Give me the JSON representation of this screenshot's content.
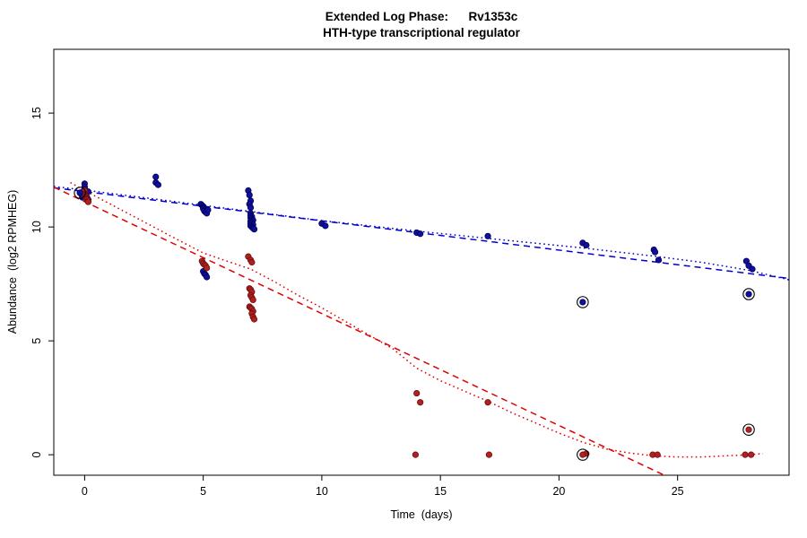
{
  "chart_data": {
    "type": "scatter",
    "title": "Extended Log Phase:      Rv1353c",
    "subtitle": "HTH-type transcriptional regulator",
    "xlabel": "Time  (days)",
    "ylabel": "Abundance  (log2 RPMHEG)",
    "xlim": [
      -1.3,
      29.7
    ],
    "ylim": [
      -0.9,
      17.8
    ],
    "xticks": [
      0,
      5,
      10,
      15,
      20,
      25
    ],
    "yticks": [
      0,
      5,
      10,
      15
    ],
    "grid": false,
    "legend": null,
    "colors": {
      "series1_points": "#10109b",
      "series2_points": "#b22020",
      "series1_line": "#0000d0",
      "series2_line": "#e00000",
      "outlier_ring": "#000000"
    },
    "series": [
      {
        "name": "fit-line-blue-dashed",
        "type": "line",
        "dash": "dashed",
        "color": "#0000d0",
        "points": [
          [
            -1.3,
            11.72
          ],
          [
            29.7,
            7.74
          ]
        ]
      },
      {
        "name": "fit-curve-blue-dotted",
        "type": "line",
        "dash": "dotted",
        "color": "#0000d0",
        "points": [
          [
            -1.3,
            11.78
          ],
          [
            0,
            11.62
          ],
          [
            3,
            11.22
          ],
          [
            5,
            10.95
          ],
          [
            7,
            10.68
          ],
          [
            10,
            10.28
          ],
          [
            14,
            9.82
          ],
          [
            17,
            9.5
          ],
          [
            21,
            9.08
          ],
          [
            24,
            8.72
          ],
          [
            26,
            8.45
          ],
          [
            28,
            8.1
          ],
          [
            29.7,
            7.68
          ]
        ]
      },
      {
        "name": "fit-line-red-dashed",
        "type": "line",
        "dash": "dashed",
        "color": "#e00000",
        "points": [
          [
            -1.3,
            11.75
          ],
          [
            24.4,
            -0.88
          ]
        ]
      },
      {
        "name": "fit-curve-red-dotted",
        "type": "line",
        "dash": "dotted",
        "color": "#e00000",
        "points": [
          [
            -0.6,
            11.95
          ],
          [
            0,
            11.6
          ],
          [
            1,
            11.05
          ],
          [
            2,
            10.5
          ],
          [
            3,
            9.95
          ],
          [
            4,
            9.4
          ],
          [
            5,
            8.86
          ],
          [
            6,
            8.5
          ],
          [
            7,
            8.15
          ],
          [
            8,
            7.6
          ],
          [
            9,
            7.0
          ],
          [
            10,
            6.45
          ],
          [
            11,
            5.85
          ],
          [
            12,
            5.25
          ],
          [
            13,
            4.65
          ],
          [
            14,
            3.8
          ],
          [
            15,
            3.25
          ],
          [
            16,
            2.8
          ],
          [
            17,
            2.35
          ],
          [
            18,
            1.85
          ],
          [
            19,
            1.4
          ],
          [
            20,
            0.95
          ],
          [
            21,
            0.55
          ],
          [
            22,
            0.25
          ],
          [
            23,
            0.07
          ],
          [
            24,
            -0.05
          ],
          [
            25,
            -0.1
          ],
          [
            26,
            -0.1
          ],
          [
            27,
            -0.05
          ],
          [
            28,
            0.0
          ],
          [
            28.6,
            0.05
          ]
        ]
      },
      {
        "name": "blue-sample-points",
        "type": "points",
        "color": "#10109b",
        "edge": "#00005a",
        "points": [
          [
            -0.15,
            11.45
          ],
          [
            -0.1,
            11.3
          ],
          [
            0,
            11.9
          ],
          [
            0,
            11.75
          ],
          [
            0,
            11.65
          ],
          [
            0,
            11.6
          ],
          [
            0,
            11.55
          ],
          [
            0,
            11.5
          ],
          [
            0.05,
            11.45
          ],
          [
            0.05,
            11.4
          ],
          [
            0.1,
            11.3
          ],
          [
            0.1,
            11.25
          ],
          [
            0.15,
            11.2
          ],
          [
            0.15,
            11.55
          ],
          [
            3,
            12.2
          ],
          [
            3,
            11.95
          ],
          [
            3.1,
            11.85
          ],
          [
            4.9,
            11.0
          ],
          [
            4.95,
            10.95
          ],
          [
            5,
            10.9
          ],
          [
            5,
            10.85
          ],
          [
            5,
            10.8
          ],
          [
            5.05,
            10.75
          ],
          [
            5.05,
            10.7
          ],
          [
            5.1,
            10.65
          ],
          [
            5.15,
            10.6
          ],
          [
            5.2,
            10.75
          ],
          [
            5,
            8.05
          ],
          [
            5.05,
            7.95
          ],
          [
            5.1,
            7.9
          ],
          [
            5.15,
            7.8
          ],
          [
            6.9,
            11.6
          ],
          [
            6.95,
            11.4
          ],
          [
            7,
            11.15
          ],
          [
            6.95,
            11.0
          ],
          [
            7,
            10.85
          ],
          [
            7,
            10.6
          ],
          [
            7,
            10.5
          ],
          [
            7.05,
            10.45
          ],
          [
            7,
            10.4
          ],
          [
            7.05,
            10.35
          ],
          [
            7.1,
            10.3
          ],
          [
            7,
            10.25
          ],
          [
            7.05,
            10.2
          ],
          [
            7,
            10.15
          ],
          [
            7.1,
            10.1
          ],
          [
            7,
            10.05
          ],
          [
            7.05,
            10.0
          ],
          [
            7.1,
            9.95
          ],
          [
            7.15,
            9.9
          ],
          [
            10,
            10.15
          ],
          [
            10.15,
            10.05
          ],
          [
            14,
            9.75
          ],
          [
            14.15,
            9.7
          ],
          [
            17,
            9.6
          ],
          [
            21,
            9.3
          ],
          [
            21.15,
            9.2
          ],
          [
            24,
            9.0
          ],
          [
            24.05,
            8.9
          ],
          [
            24.2,
            8.55
          ],
          [
            27.9,
            8.5
          ],
          [
            28,
            8.3
          ],
          [
            28.15,
            8.15
          ]
        ]
      },
      {
        "name": "red-sample-points",
        "type": "points",
        "color": "#b22020",
        "edge": "#6b0f0f",
        "points": [
          [
            -0.1,
            11.5
          ],
          [
            0,
            11.6
          ],
          [
            0,
            11.45
          ],
          [
            0,
            11.4
          ],
          [
            0.05,
            11.35
          ],
          [
            0.05,
            11.3
          ],
          [
            0.1,
            11.25
          ],
          [
            0.1,
            11.2
          ],
          [
            0.15,
            11.15
          ],
          [
            0.15,
            11.1
          ],
          [
            4.95,
            8.5
          ],
          [
            5,
            8.4
          ],
          [
            5.05,
            8.35
          ],
          [
            5.1,
            8.3
          ],
          [
            5.15,
            8.2
          ],
          [
            6.9,
            8.7
          ],
          [
            7,
            8.55
          ],
          [
            7.05,
            8.45
          ],
          [
            6.95,
            7.3
          ],
          [
            7,
            7.25
          ],
          [
            7.05,
            7.15
          ],
          [
            7,
            7.0
          ],
          [
            7.05,
            6.9
          ],
          [
            7.1,
            6.8
          ],
          [
            6.95,
            6.5
          ],
          [
            7,
            6.45
          ],
          [
            7.05,
            6.4
          ],
          [
            7.1,
            6.3
          ],
          [
            7.05,
            6.2
          ],
          [
            7.1,
            6.05
          ],
          [
            7.15,
            5.95
          ],
          [
            13.95,
            0.0
          ],
          [
            14,
            2.7
          ],
          [
            14.15,
            2.3
          ],
          [
            17,
            2.3
          ],
          [
            17.05,
            0.0
          ],
          [
            21.15,
            0.05
          ],
          [
            23.95,
            0.0
          ],
          [
            24.15,
            0.0
          ],
          [
            27.85,
            0.0
          ],
          [
            28.1,
            0.0
          ]
        ]
      },
      {
        "name": "blue-flagged-points",
        "type": "points-circled",
        "color": "#10109b",
        "edge": "#00005a",
        "points": [
          [
            -0.2,
            11.5
          ],
          [
            21,
            6.7
          ],
          [
            28,
            7.05
          ]
        ]
      },
      {
        "name": "red-flagged-points",
        "type": "points-circled",
        "color": "#b22020",
        "edge": "#6b0f0f",
        "points": [
          [
            21,
            0.0
          ],
          [
            28,
            1.1
          ]
        ]
      }
    ]
  }
}
